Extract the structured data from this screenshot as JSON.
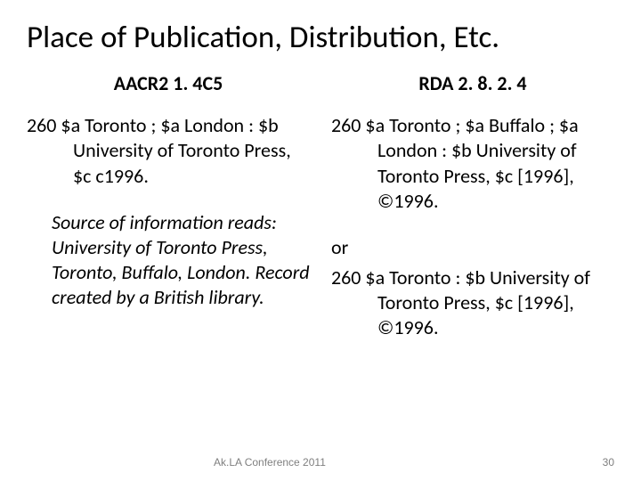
{
  "title": "Place of Publication, Distribution, Etc.",
  "left": {
    "heading": "AACR2  1. 4C5",
    "record": "260   $a Toronto ; $a London : $b University of Toronto Press, $c c1996.",
    "note_lead": "Source of information reads:",
    "note_rest": " University of Toronto Press, Toronto, Buffalo, London. Record created by a British library."
  },
  "right": {
    "heading": "RDA  2. 8. 2. 4",
    "record1": "260   $a Toronto ; $a Buffalo ; $a London : $b University of Toronto Press, $c [1996], ©1996.",
    "or": "or",
    "record2": "260   $a Toronto : $b University of Toronto Press, $c [1996], ©1996."
  },
  "footer": {
    "conference": "Ak.LA Conference 2011",
    "page": "30"
  },
  "colors": {
    "background": "#ffffff",
    "text": "#000000",
    "footer_text": "#7f7f7f"
  }
}
